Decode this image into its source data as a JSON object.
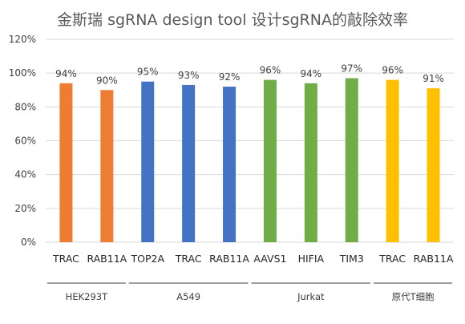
{
  "chart_data": {
    "type": "bar",
    "title": "金斯瑞 sgRNA design tool 设计sgRNA的敲除效率",
    "ylim": [
      0,
      120
    ],
    "yticks": [
      "0%",
      "20%",
      "40%",
      "60%",
      "80%",
      "100%",
      "120%"
    ],
    "grid": true,
    "categories": [
      "TRAC",
      "RAB11A",
      "TOP2A",
      "TRAC",
      "RAB11A",
      "AAVS1",
      "HIFIA",
      "TIM3",
      "TRAC",
      "RAB11A"
    ],
    "values": [
      94,
      90,
      95,
      93,
      92,
      96,
      94,
      97,
      96,
      91
    ],
    "data_labels": [
      "94%",
      "90%",
      "95%",
      "93%",
      "92%",
      "96%",
      "94%",
      "97%",
      "96%",
      "91%"
    ],
    "groups": [
      {
        "name": "HEK293T",
        "color": "#ED7D31",
        "indices": [
          0,
          1
        ]
      },
      {
        "name": "A549",
        "color": "#4472C4",
        "indices": [
          2,
          3,
          4
        ]
      },
      {
        "name": "Jurkat",
        "color": "#70AD47",
        "indices": [
          5,
          6,
          7
        ]
      },
      {
        "name": "原代T细胞",
        "color": "#FFC000",
        "indices": [
          8,
          9
        ]
      }
    ],
    "axis_color": "#d9d9d9"
  }
}
